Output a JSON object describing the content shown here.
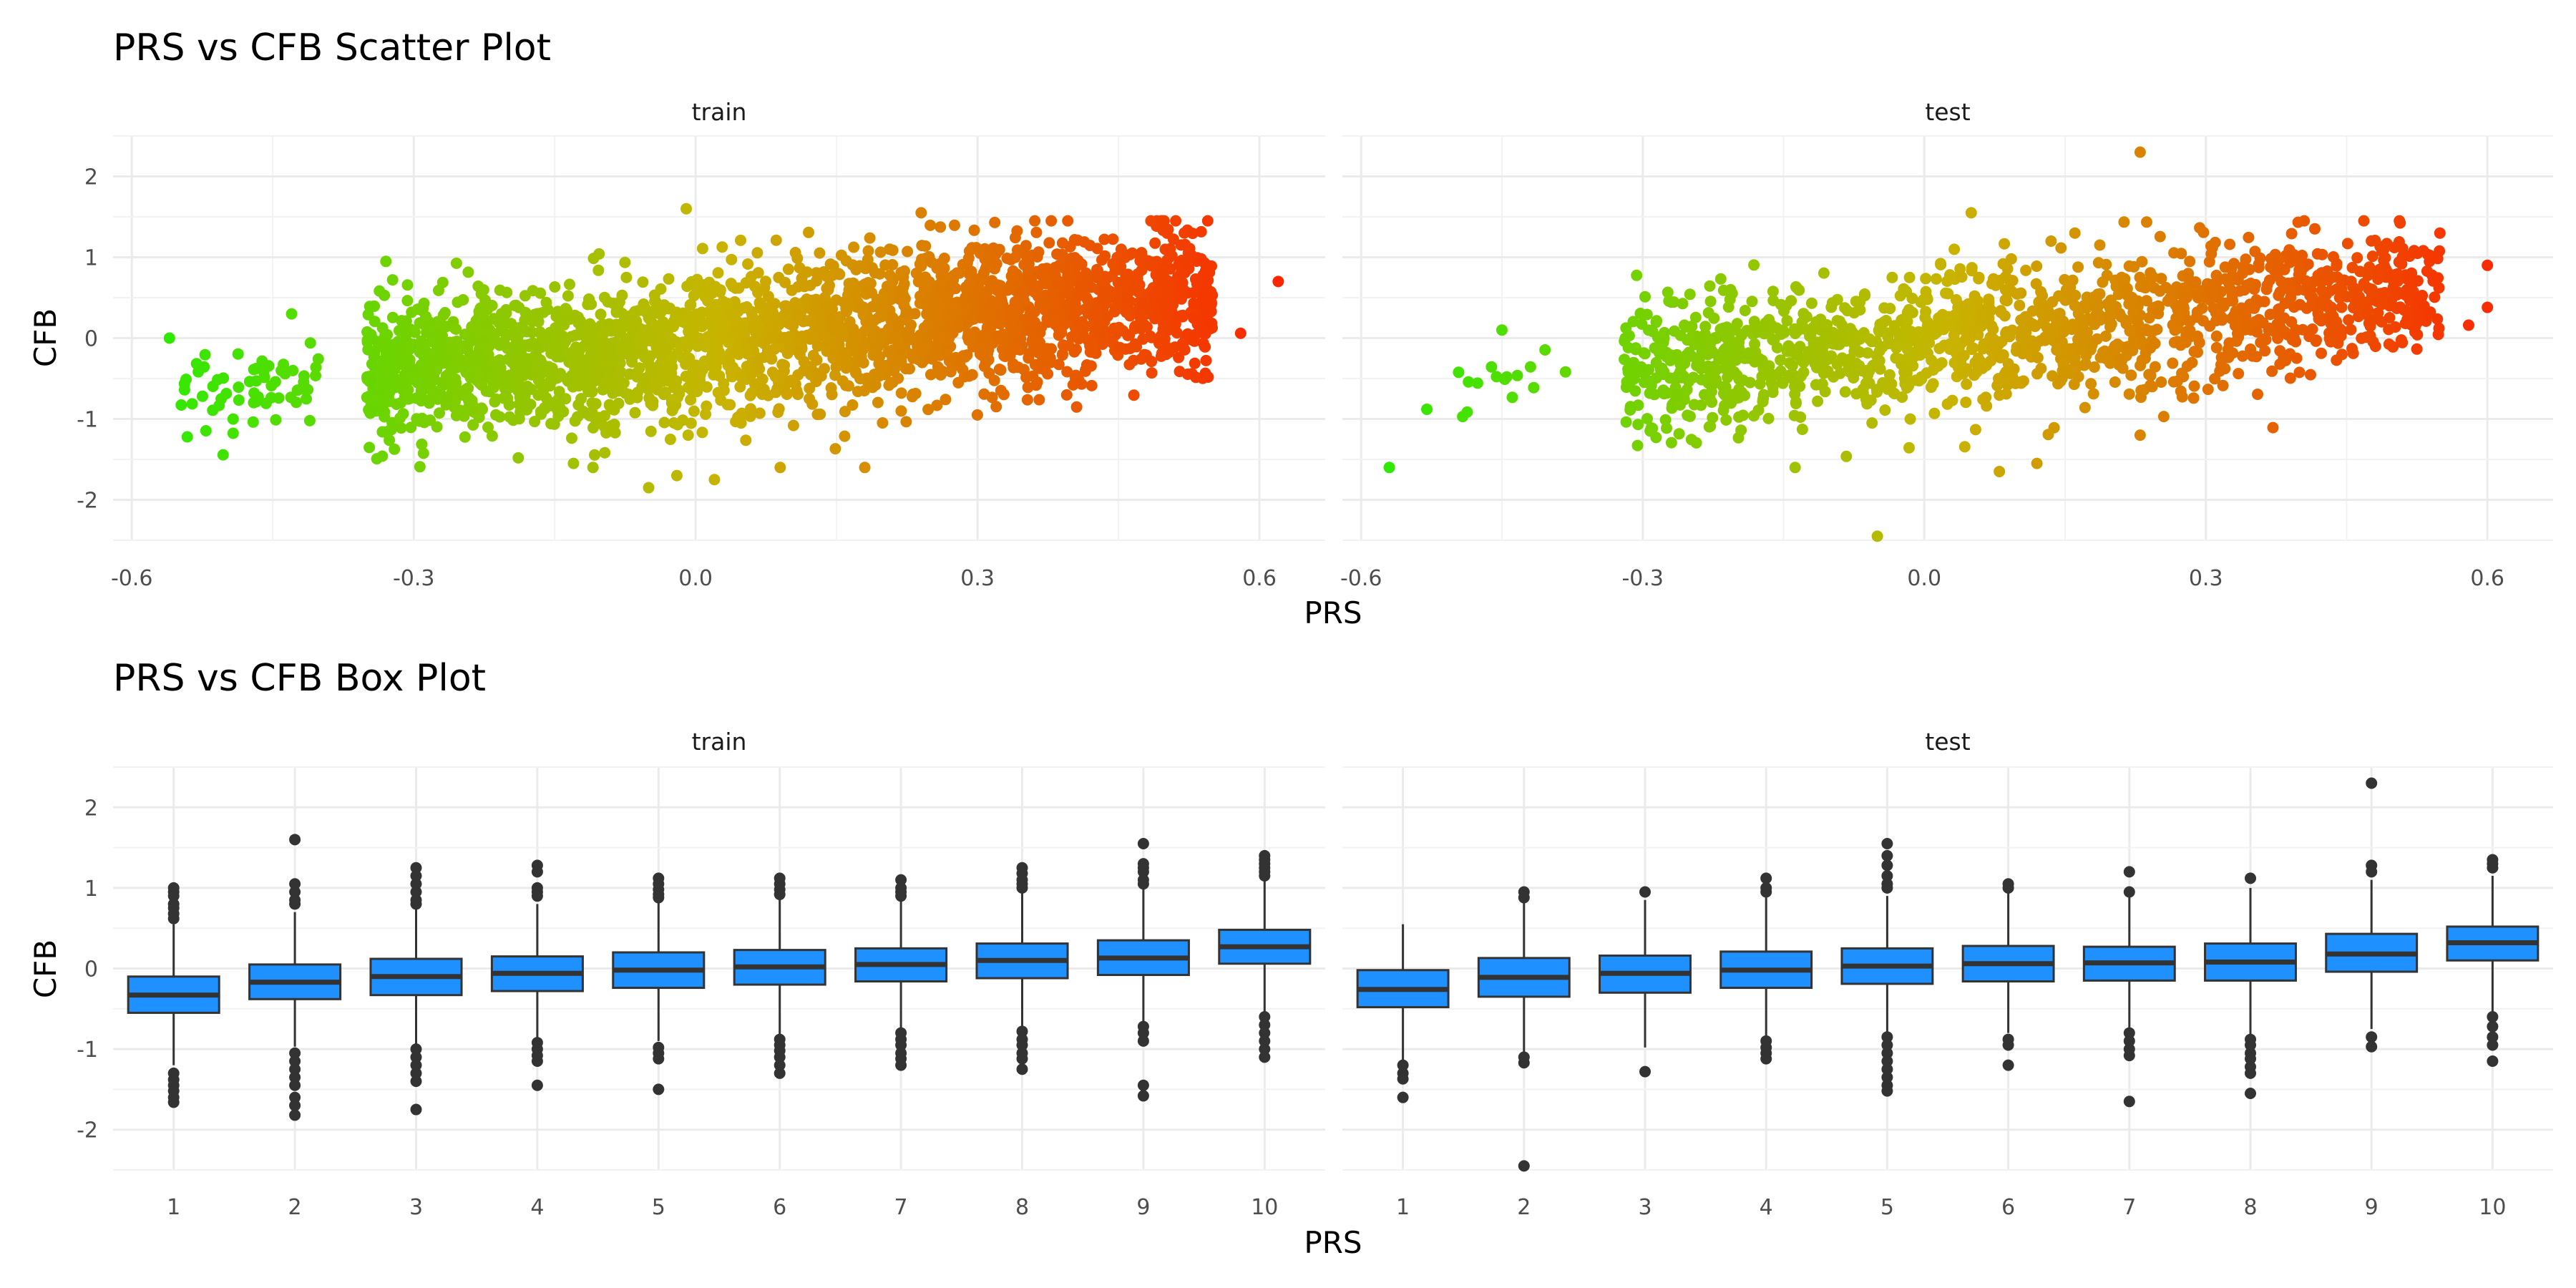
{
  "colors": {
    "low": "#22ee00",
    "mid": "#c8b400",
    "high": "#ff1a00",
    "box_fill": "#1e90ff",
    "box_line": "#333333"
  },
  "chart_data": [
    {
      "type": "scatter",
      "title": "PRS vs CFB Scatter Plot",
      "xlabel": "PRS",
      "ylabel": "CFB",
      "xlim": [
        -0.62,
        0.67
      ],
      "ylim": [
        -2.5,
        2.5
      ],
      "x_ticks": [
        "-0.6",
        "-0.3",
        "0.0",
        "0.3",
        "0.6"
      ],
      "y_ticks": [
        "-2",
        "-1",
        "0",
        "1",
        "2"
      ],
      "color_scale": "PRS, green (low) to red (high)",
      "grid": true,
      "legend": "none",
      "facets": [
        {
          "name": "train",
          "clusters": [
            {
              "x_range": [
                -0.55,
                -0.4
              ],
              "y_center_start": -0.7,
              "y_center_end": -0.5,
              "y_spread": 0.25,
              "approx_points": 60
            },
            {
              "x_range": [
                -0.35,
                0.55
              ],
              "y_center_start": -0.45,
              "y_center_end": 0.55,
              "y_spread": 0.45,
              "approx_points": 2600
            }
          ],
          "outliers": [
            {
              "x": 0.62,
              "y": 0.7
            },
            {
              "x": 0.58,
              "y": 0.06
            },
            {
              "x": 0.52,
              "y": 1.3
            },
            {
              "x": -0.01,
              "y": 1.6
            },
            {
              "x": 0.24,
              "y": 1.55
            },
            {
              "x": -0.02,
              "y": -1.7
            },
            {
              "x": -0.05,
              "y": -1.85
            },
            {
              "x": 0.09,
              "y": -1.6
            },
            {
              "x": 0.18,
              "y": -1.6
            },
            {
              "x": -0.13,
              "y": -1.55
            },
            {
              "x": 0.02,
              "y": -1.75
            },
            {
              "x": -0.56,
              "y": 0.0
            },
            {
              "x": -0.43,
              "y": 0.3
            },
            {
              "x": -0.41,
              "y": -0.06
            }
          ]
        },
        {
          "name": "test",
          "clusters": [
            {
              "x_range": [
                -0.5,
                -0.38
              ],
              "y_center_start": -0.75,
              "y_center_end": -0.45,
              "y_spread": 0.3,
              "approx_points": 15
            },
            {
              "x_range": [
                -0.32,
                0.55
              ],
              "y_center_start": -0.4,
              "y_center_end": 0.6,
              "y_spread": 0.42,
              "approx_points": 1500
            }
          ],
          "outliers": [
            {
              "x": -0.57,
              "y": -1.6
            },
            {
              "x": -0.53,
              "y": -0.88
            },
            {
              "x": 0.23,
              "y": 2.3
            },
            {
              "x": -0.05,
              "y": -2.45
            },
            {
              "x": 0.6,
              "y": 0.9
            },
            {
              "x": 0.6,
              "y": 0.38
            },
            {
              "x": 0.58,
              "y": 0.16
            },
            {
              "x": 0.08,
              "y": -1.65
            },
            {
              "x": 0.12,
              "y": -1.55
            },
            {
              "x": 0.05,
              "y": 1.55
            },
            {
              "x": -0.45,
              "y": 0.1
            },
            {
              "x": 0.23,
              "y": -1.2
            }
          ]
        }
      ]
    },
    {
      "type": "box",
      "title": "PRS vs CFB Box Plot",
      "xlabel": "PRS",
      "ylabel": "CFB",
      "categories": [
        "1",
        "2",
        "3",
        "4",
        "5",
        "6",
        "7",
        "8",
        "9",
        "10"
      ],
      "ylim": [
        -2.5,
        2.5
      ],
      "y_ticks": [
        "-2",
        "-1",
        "0",
        "1",
        "2"
      ],
      "grid": true,
      "legend": "none",
      "facets": [
        {
          "name": "train",
          "boxes": [
            {
              "q1": -0.55,
              "median": -0.33,
              "q3": -0.1,
              "lower_whisker": -1.2,
              "upper_whisker": 0.55,
              "outliers": [
                1.0,
                0.95,
                0.9,
                0.8,
                0.75,
                0.68,
                0.62,
                -1.3,
                -1.38,
                -1.45,
                -1.52,
                -1.6,
                -1.66
              ]
            },
            {
              "q1": -0.38,
              "median": -0.17,
              "q3": 0.05,
              "lower_whisker": -0.97,
              "upper_whisker": 0.7,
              "outliers": [
                1.6,
                1.05,
                0.95,
                0.85,
                0.8,
                -1.05,
                -1.15,
                -1.25,
                -1.35,
                -1.45,
                -1.6,
                -1.7,
                -1.82
              ]
            },
            {
              "q1": -0.33,
              "median": -0.1,
              "q3": 0.12,
              "lower_whisker": -0.95,
              "upper_whisker": 0.75,
              "outliers": [
                1.25,
                1.15,
                1.05,
                0.95,
                0.85,
                0.8,
                -1.0,
                -1.1,
                -1.2,
                -1.3,
                -1.4,
                -1.75
              ]
            },
            {
              "q1": -0.28,
              "median": -0.06,
              "q3": 0.15,
              "lower_whisker": -0.88,
              "upper_whisker": 0.8,
              "outliers": [
                1.28,
                1.2,
                1.0,
                0.95,
                0.9,
                -0.92,
                -1.0,
                -1.08,
                -1.15,
                -1.45
              ]
            },
            {
              "q1": -0.24,
              "median": -0.02,
              "q3": 0.2,
              "lower_whisker": -0.9,
              "upper_whisker": 0.85,
              "outliers": [
                1.12,
                1.05,
                0.98,
                0.92,
                0.88,
                -0.98,
                -1.05,
                -1.12,
                -1.5
              ]
            },
            {
              "q1": -0.2,
              "median": 0.02,
              "q3": 0.23,
              "lower_whisker": -0.82,
              "upper_whisker": 0.88,
              "outliers": [
                1.12,
                1.05,
                0.98,
                0.92,
                -0.88,
                -0.95,
                -1.02,
                -1.1,
                -1.2,
                -1.3
              ]
            },
            {
              "q1": -0.16,
              "median": 0.05,
              "q3": 0.25,
              "lower_whisker": -0.75,
              "upper_whisker": 0.87,
              "outliers": [
                1.1,
                1.0,
                0.95,
                0.9,
                -0.8,
                -0.88,
                -0.95,
                -1.05,
                -1.12,
                -1.2
              ]
            },
            {
              "q1": -0.12,
              "median": 0.1,
              "q3": 0.31,
              "lower_whisker": -0.75,
              "upper_whisker": 0.95,
              "outliers": [
                1.25,
                1.18,
                1.1,
                1.05,
                1.0,
                -0.78,
                -0.88,
                -0.95,
                -1.05,
                -1.12,
                -1.25
              ]
            },
            {
              "q1": -0.08,
              "median": 0.13,
              "q3": 0.35,
              "lower_whisker": -0.7,
              "upper_whisker": 1.0,
              "outliers": [
                1.55,
                1.3,
                1.25,
                1.2,
                1.1,
                1.05,
                -0.72,
                -0.8,
                -0.9,
                -1.45,
                -1.58
              ]
            },
            {
              "q1": 0.06,
              "median": 0.27,
              "q3": 0.48,
              "lower_whisker": -0.55,
              "upper_whisker": 1.1,
              "outliers": [
                1.4,
                1.35,
                1.3,
                1.25,
                1.2,
                1.15,
                -0.6,
                -0.7,
                -0.8,
                -0.9,
                -1.0,
                -1.1
              ]
            }
          ]
        },
        {
          "name": "test",
          "boxes": [
            {
              "q1": -0.48,
              "median": -0.26,
              "q3": -0.02,
              "lower_whisker": -1.15,
              "upper_whisker": 0.55,
              "outliers": [
                -1.2,
                -1.3,
                -1.37,
                -1.6
              ]
            },
            {
              "q1": -0.35,
              "median": -0.11,
              "q3": 0.13,
              "lower_whisker": -1.05,
              "upper_whisker": 0.82,
              "outliers": [
                0.95,
                0.88,
                -1.1,
                -1.17,
                -2.45
              ]
            },
            {
              "q1": -0.3,
              "median": -0.06,
              "q3": 0.16,
              "lower_whisker": -0.98,
              "upper_whisker": 0.85,
              "outliers": [
                0.95,
                -1.28
              ]
            },
            {
              "q1": -0.24,
              "median": -0.02,
              "q3": 0.21,
              "lower_whisker": -0.88,
              "upper_whisker": 0.88,
              "outliers": [
                1.12,
                1.0,
                0.95,
                -0.9,
                -0.98,
                -1.05,
                -1.12
              ]
            },
            {
              "q1": -0.19,
              "median": 0.03,
              "q3": 0.25,
              "lower_whisker": -0.82,
              "upper_whisker": 0.9,
              "outliers": [
                1.55,
                1.4,
                1.28,
                1.15,
                1.05,
                1.0,
                -0.85,
                -0.95,
                -1.05,
                -1.15,
                -1.25,
                -1.35,
                -1.45,
                -1.52
              ]
            },
            {
              "q1": -0.16,
              "median": 0.06,
              "q3": 0.28,
              "lower_whisker": -0.8,
              "upper_whisker": 0.95,
              "outliers": [
                1.05,
                1.0,
                -0.88,
                -0.95,
                -1.2
              ]
            },
            {
              "q1": -0.15,
              "median": 0.07,
              "q3": 0.27,
              "lower_whisker": -0.78,
              "upper_whisker": 0.9,
              "outliers": [
                1.2,
                0.95,
                -0.8,
                -0.9,
                -1.0,
                -1.08,
                -1.65
              ]
            },
            {
              "q1": -0.15,
              "median": 0.08,
              "q3": 0.31,
              "lower_whisker": -0.82,
              "upper_whisker": 1.0,
              "outliers": [
                1.12,
                -0.88,
                -0.95,
                -1.05,
                -1.12,
                -1.22,
                -1.3,
                -1.55
              ]
            },
            {
              "q1": -0.04,
              "median": 0.18,
              "q3": 0.43,
              "lower_whisker": -0.75,
              "upper_whisker": 1.1,
              "outliers": [
                2.3,
                1.28,
                1.2,
                -0.85,
                -0.97
              ]
            },
            {
              "q1": 0.1,
              "median": 0.32,
              "q3": 0.52,
              "lower_whisker": -0.55,
              "upper_whisker": 1.15,
              "outliers": [
                1.35,
                1.3,
                1.25,
                -0.6,
                -0.72,
                -0.85,
                -0.95,
                -1.15
              ]
            }
          ]
        }
      ]
    }
  ]
}
